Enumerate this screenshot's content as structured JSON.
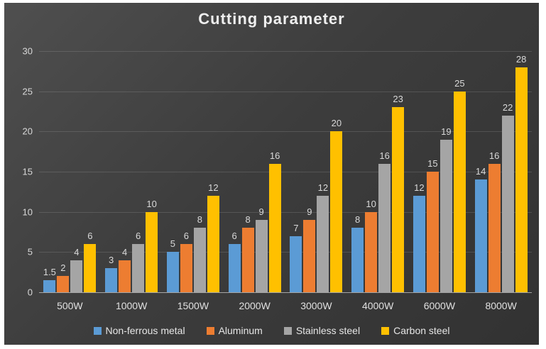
{
  "chart_data": {
    "type": "bar",
    "title": "Cutting parameter",
    "categories": [
      "500W",
      "1000W",
      "1500W",
      "2000W",
      "3000W",
      "4000W",
      "6000W",
      "8000W"
    ],
    "series": [
      {
        "name": "Non-ferrous metal",
        "color": "#5B9BD5",
        "values": [
          1.5,
          3,
          5,
          6,
          7,
          8,
          12,
          14
        ]
      },
      {
        "name": "Aluminum",
        "color": "#ED7D31",
        "values": [
          2,
          4,
          6,
          8,
          9,
          10,
          15,
          16
        ]
      },
      {
        "name": "Stainless steel",
        "color": "#A5A5A5",
        "values": [
          4,
          6,
          8,
          9,
          12,
          16,
          19,
          22
        ]
      },
      {
        "name": "Carbon steel",
        "color": "#FFC000",
        "values": [
          6,
          10,
          12,
          16,
          20,
          23,
          25,
          28
        ]
      }
    ],
    "y_ticks": [
      0,
      5,
      10,
      15,
      20,
      25,
      30
    ],
    "ylim": [
      0,
      30
    ],
    "grid": true,
    "legend_position": "bottom",
    "colors": {
      "background_top": "#4f4f4f",
      "background_bottom": "#323232",
      "tick_label": "#d9d9d9",
      "data_label": "#d9d9d9",
      "title": "#efefef",
      "gridline": "rgba(255,255,255,0.13)"
    }
  }
}
